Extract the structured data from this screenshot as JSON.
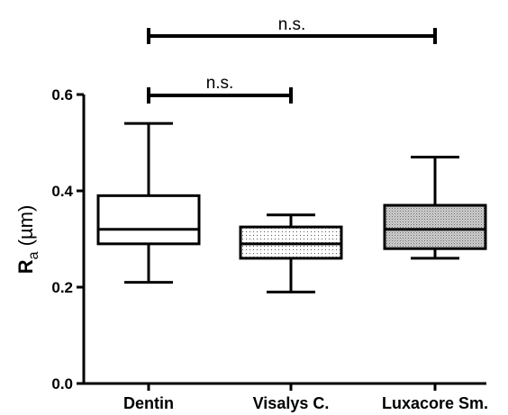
{
  "chart_data": {
    "type": "box",
    "ylabel": "Ra (µm)",
    "ylabel_main": "R",
    "ylabel_sub": "a",
    "ylabel_unit": " (µm)",
    "ylim": [
      0.0,
      0.6
    ],
    "yticks": [
      0.0,
      0.2,
      0.4,
      0.6
    ],
    "ytick_labels": [
      "0.0",
      "0.2",
      "0.4",
      "0.6"
    ],
    "categories": [
      "Dentin",
      "Visalys C.",
      "Luxacore Sm."
    ],
    "boxes": [
      {
        "name": "Dentin",
        "min": 0.21,
        "q1": 0.29,
        "median": 0.32,
        "q3": 0.39,
        "max": 0.54,
        "fill": "none"
      },
      {
        "name": "Visalys C.",
        "min": 0.19,
        "q1": 0.26,
        "median": 0.29,
        "q3": 0.325,
        "max": 0.35,
        "fill": "dotted"
      },
      {
        "name": "Luxacore Sm.",
        "min": 0.26,
        "q1": 0.28,
        "median": 0.32,
        "q3": 0.37,
        "max": 0.47,
        "fill": "crosshatch"
      }
    ],
    "significance": [
      {
        "from": "Dentin",
        "to": "Visalys C.",
        "label": "n.s."
      },
      {
        "from": "Dentin",
        "to": "Luxacore Sm.",
        "label": "n.s."
      }
    ],
    "colors": {
      "stroke": "#000000",
      "background": "#ffffff"
    }
  }
}
